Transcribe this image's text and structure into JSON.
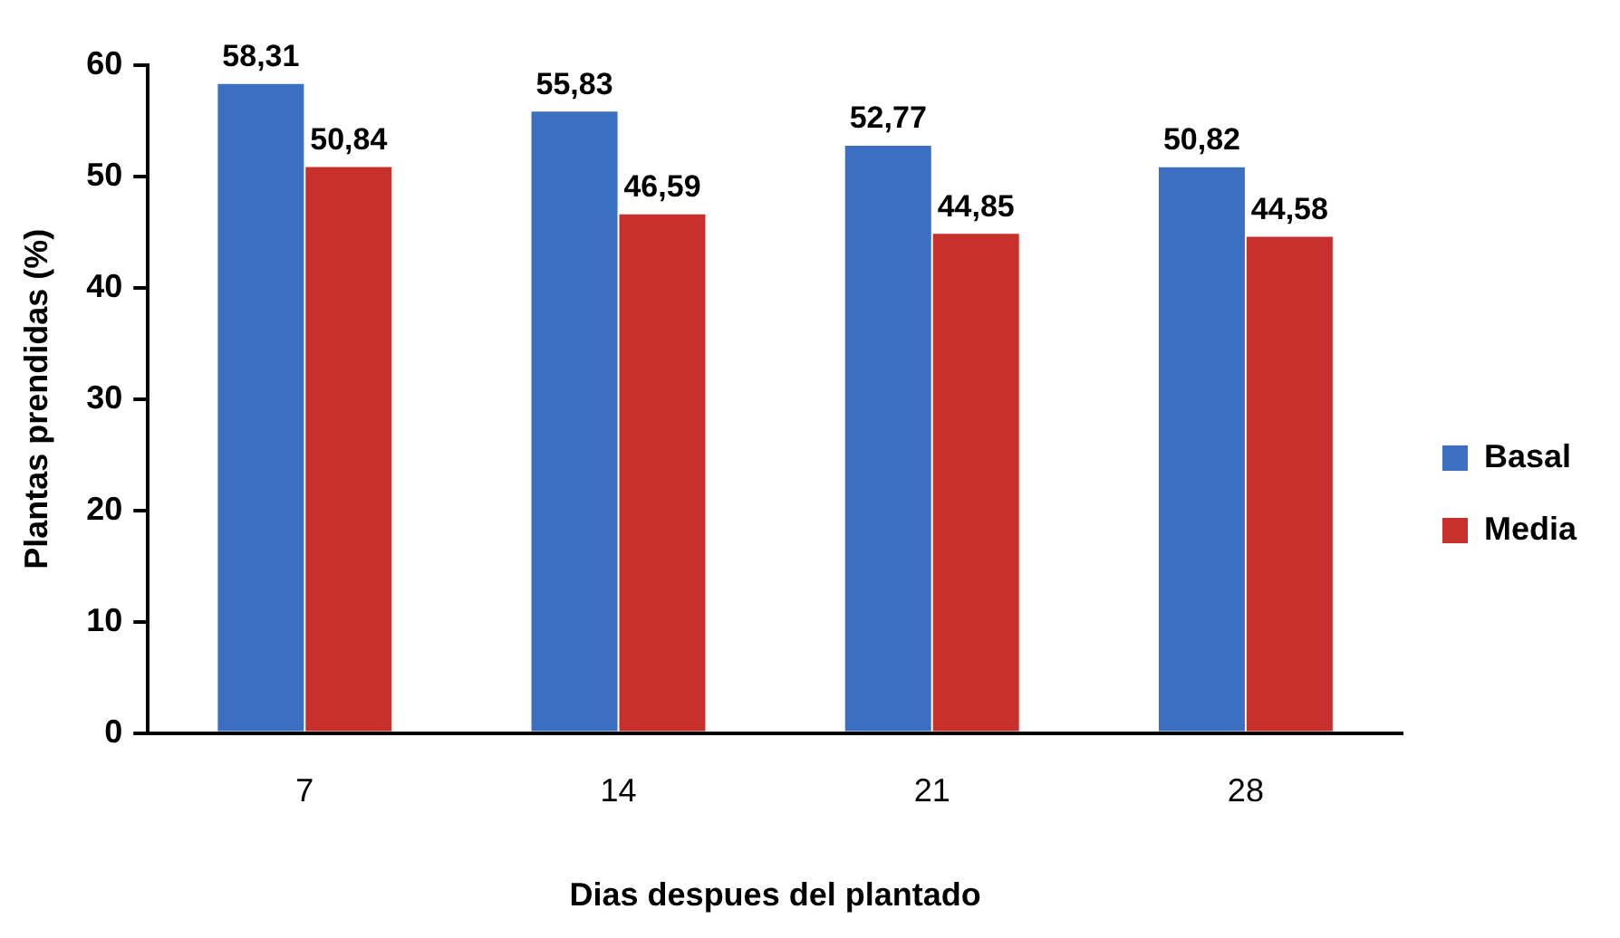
{
  "chart_data": {
    "type": "bar",
    "xlabel": "Dias despues del plantado",
    "ylabel": "Plantas prendidas (%)",
    "categories": [
      "7",
      "14",
      "21",
      "28"
    ],
    "series": [
      {
        "name": "Basal",
        "color": "#3b6fc2",
        "values": [
          58.31,
          55.83,
          52.77,
          50.82
        ],
        "value_labels": [
          "58,31",
          "55,83",
          "52,77",
          "50,82"
        ]
      },
      {
        "name": "Media",
        "color": "#c8302e",
        "values": [
          50.84,
          46.59,
          44.85,
          44.58
        ],
        "value_labels": [
          "50,84",
          "46,59",
          "44,85",
          "44,58"
        ]
      }
    ],
    "ylim": [
      0,
      60
    ],
    "yticks": [
      0,
      10,
      20,
      30,
      40,
      50,
      60
    ],
    "legend": "right"
  }
}
